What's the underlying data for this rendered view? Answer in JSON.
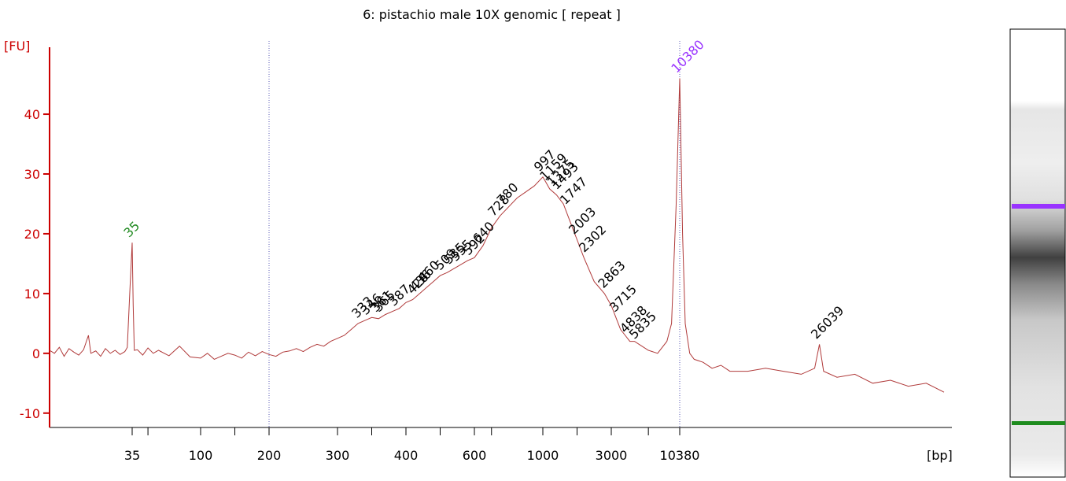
{
  "chart_data": {
    "type": "line",
    "title": "6: pistachio male 10X genomic  [ repeat ]",
    "y_label": "[FU]",
    "x_label": "[bp]",
    "ylim": [
      -12.4,
      51.2
    ],
    "yticks": [
      -10,
      0,
      10,
      20,
      30,
      40
    ],
    "xlim": [
      1,
      40000
    ],
    "xticks": [
      35,
      100,
      200,
      300,
      400,
      600,
      1000,
      3000,
      10380
    ],
    "xminor": [
      50,
      150,
      350,
      500,
      700,
      2000,
      7000
    ],
    "region_markers": [
      200,
      10380
    ],
    "axis_color": "#cc0000",
    "trace": {
      "color": "#b03a3a",
      "x": [
        1,
        3,
        5,
        7,
        9,
        11,
        13,
        15,
        17,
        18,
        20,
        22,
        24,
        26,
        28,
        30,
        32,
        33,
        34,
        35,
        36,
        37,
        40,
        45,
        50,
        55,
        60,
        70,
        80,
        90,
        100,
        110,
        120,
        130,
        140,
        150,
        160,
        170,
        180,
        190,
        200,
        210,
        220,
        230,
        240,
        250,
        260,
        270,
        280,
        290,
        300,
        310,
        320,
        330,
        340,
        350,
        360,
        370,
        380,
        390,
        400,
        420,
        440,
        460,
        480,
        500,
        520,
        550,
        580,
        600,
        650,
        700,
        750,
        800,
        850,
        900,
        950,
        1000,
        1100,
        1200,
        1400,
        1600,
        1800,
        2000,
        2200,
        2500,
        2800,
        3000,
        3500,
        4000,
        4500,
        5000,
        5500,
        6000,
        7000,
        8000,
        9000,
        9500,
        10000,
        10380,
        10700,
        11000,
        11500,
        12000,
        13000,
        14000,
        15000,
        16000,
        18000,
        20000,
        22000,
        24000,
        25500,
        26039,
        26500,
        28000,
        30000,
        32000,
        34000,
        36000,
        38000,
        40000
      ],
      "values": [
        0.5,
        0,
        1,
        -0.5,
        0.8,
        0.2,
        -0.3,
        0.6,
        3,
        0,
        0.4,
        -0.5,
        0.8,
        0,
        0.5,
        -0.2,
        0.3,
        1,
        10,
        18.5,
        8,
        0.5,
        0.6,
        -0.3,
        0.9,
        0,
        0.5,
        -0.4,
        1.2,
        -0.6,
        -0.8,
        0,
        -1,
        -0.5,
        0,
        -0.3,
        -0.8,
        0.2,
        -0.4,
        0.3,
        -0.2,
        -0.5,
        0.2,
        0.4,
        0.8,
        0.3,
        1,
        1.5,
        1.2,
        2,
        2.5,
        3,
        4,
        5,
        5.5,
        6,
        5.8,
        6.5,
        7,
        7.5,
        8.5,
        9,
        10,
        11,
        12,
        13,
        13.5,
        14.5,
        15.5,
        16,
        18,
        21,
        23,
        24.5,
        26,
        27,
        28,
        29.5,
        28.5,
        27.5,
        26.5,
        25,
        22,
        19,
        16,
        12,
        10,
        8,
        6,
        4,
        3,
        2,
        2,
        1.5,
        0.5,
        0,
        2,
        5,
        25,
        46,
        20,
        5,
        0,
        -1,
        -1.5,
        -2.5,
        -2,
        -3,
        -3,
        -2.5,
        -3,
        -3.5,
        -2.5,
        1.5,
        -3,
        -4,
        -3.5,
        -5,
        -4.5,
        -5.5,
        -5,
        -6.5
      ]
    },
    "peaks": {
      "x": [
        35,
        333,
        346,
        361,
        365,
        387,
        428,
        436,
        460,
        509,
        535,
        555,
        592,
        640,
        728,
        780,
        997,
        1159,
        1375,
        1493,
        1747,
        2003,
        2302,
        2863,
        3715,
        4838,
        5835,
        10380,
        26039
      ],
      "values": [
        18.5,
        5,
        5.5,
        6,
        6,
        7,
        9,
        9.5,
        11,
        13,
        14,
        14.5,
        15.5,
        17.5,
        22,
        24,
        29.5,
        28,
        27,
        26.5,
        24,
        19,
        16,
        10,
        6,
        2.5,
        1.5,
        46,
        1.5
      ],
      "colors": [
        "#228b22",
        "#000",
        "#000",
        "#000",
        "#000",
        "#000",
        "#000",
        "#000",
        "#000",
        "#000",
        "#000",
        "#000",
        "#000",
        "#000",
        "#000",
        "#000",
        "#000",
        "#000",
        "#000",
        "#000",
        "#000",
        "#000",
        "#000",
        "#000",
        "#000",
        "#000",
        "#000",
        "#9932ff",
        "#000"
      ]
    }
  }
}
